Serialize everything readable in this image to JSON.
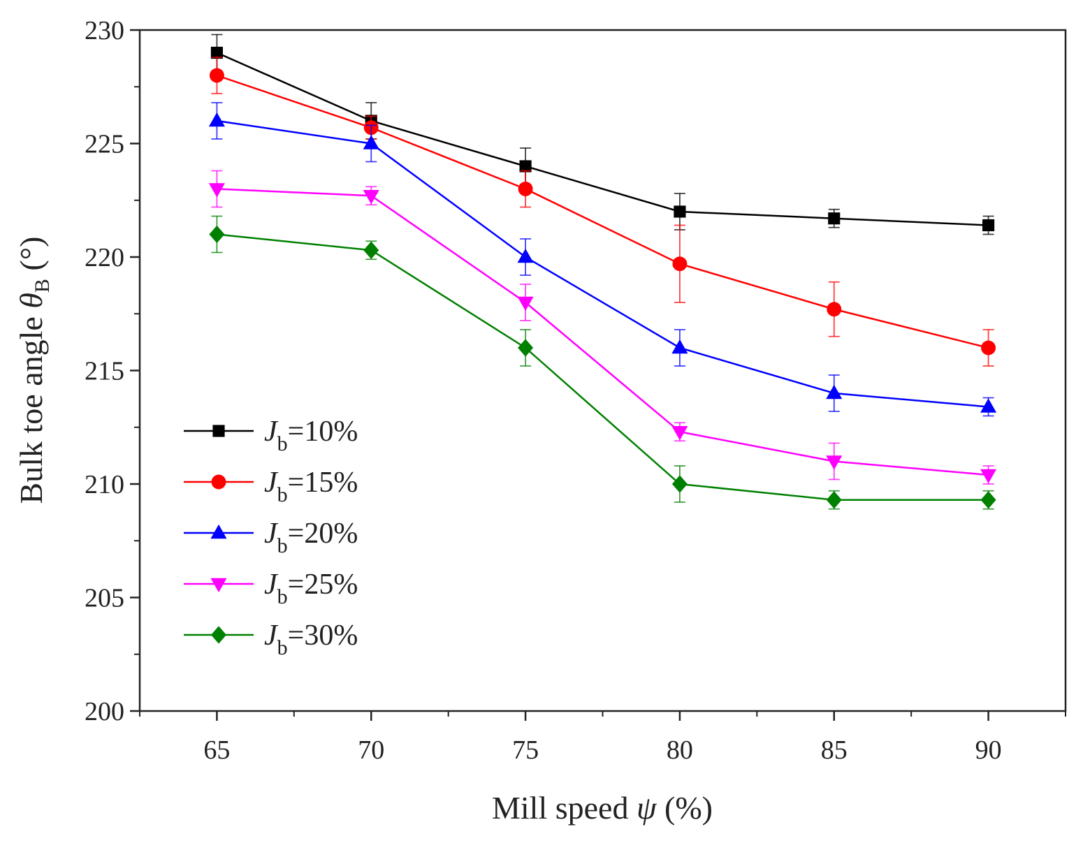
{
  "chart_data": {
    "type": "line",
    "title": "",
    "xlabel": "Mill speed ψ (%)",
    "xlabel_parts": {
      "prefix": "Mill speed ",
      "symbol": "ψ",
      "suffix": " (%)"
    },
    "ylabel": "Bulk toe angle θB (°)",
    "ylabel_parts": {
      "prefix": "Bulk toe angle ",
      "symbol": "θ",
      "subscript": "B",
      "suffix": " (°)"
    },
    "x": [
      65,
      70,
      75,
      80,
      85,
      90
    ],
    "xlim": [
      62.5,
      92.5
    ],
    "ylim": [
      200,
      230
    ],
    "xticks": [
      65,
      70,
      75,
      80,
      85,
      90
    ],
    "yticks": [
      200,
      205,
      210,
      215,
      220,
      225,
      230
    ],
    "grid": false,
    "legend_position": "middle-left",
    "series": [
      {
        "name": "Jb=10%",
        "label_main": "J",
        "label_sub": "b",
        "label_rest": "=10%",
        "color": "#000000",
        "marker": "square",
        "values": [
          229,
          226,
          224,
          222,
          221.7,
          221.4
        ],
        "errors": [
          0.8,
          0.8,
          0.8,
          0.8,
          0.4,
          0.4
        ]
      },
      {
        "name": "Jb=15%",
        "label_main": "J",
        "label_sub": "b",
        "label_rest": "=15%",
        "color": "#ff0000",
        "marker": "circle",
        "values": [
          228,
          225.7,
          223,
          219.7,
          217.7,
          216
        ],
        "errors": [
          0.8,
          0.5,
          0.8,
          1.7,
          1.2,
          0.8
        ]
      },
      {
        "name": "Jb=20%",
        "label_main": "J",
        "label_sub": "b",
        "label_rest": "=20%",
        "color": "#0000ff",
        "marker": "triangle-up",
        "values": [
          226,
          225,
          220,
          216,
          214,
          213.4
        ],
        "errors": [
          0.8,
          0.8,
          0.8,
          0.8,
          0.8,
          0.4
        ]
      },
      {
        "name": "Jb=25%",
        "label_main": "J",
        "label_sub": "b",
        "label_rest": "=25%",
        "color": "#ff00ff",
        "marker": "triangle-down",
        "values": [
          223,
          222.7,
          218,
          212.3,
          211,
          210.4
        ],
        "errors": [
          0.8,
          0.4,
          0.8,
          0.4,
          0.8,
          0.4
        ]
      },
      {
        "name": "Jb=30%",
        "label_main": "J",
        "label_sub": "b",
        "label_rest": "=30%",
        "color": "#008000",
        "marker": "diamond",
        "values": [
          221,
          220.3,
          216,
          210,
          209.3,
          209.3
        ],
        "errors": [
          0.8,
          0.4,
          0.8,
          0.8,
          0.4,
          0.4
        ]
      }
    ]
  }
}
